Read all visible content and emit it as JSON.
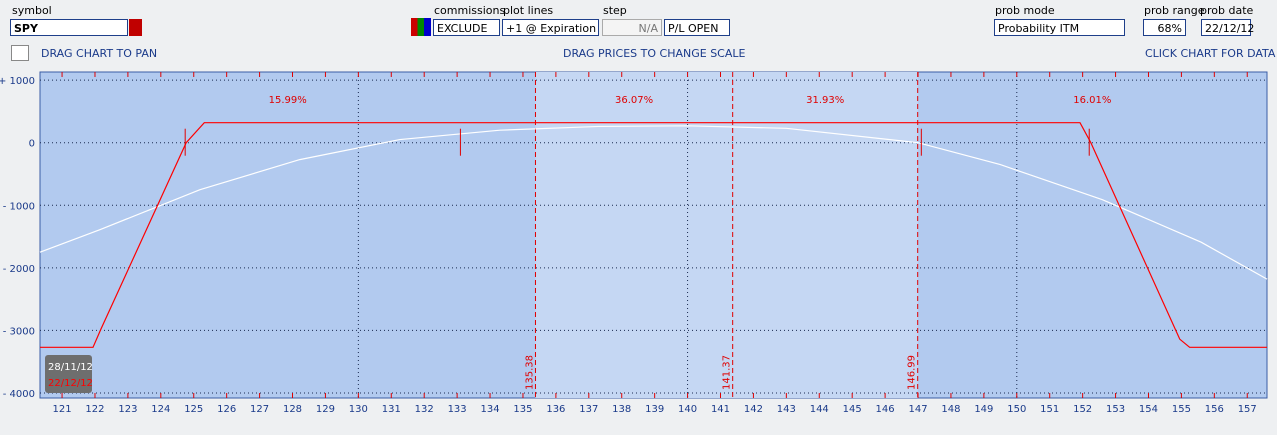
{
  "toolbar": {
    "symbol_label": "symbol",
    "symbol": "SPY",
    "commissions_label": "commissions",
    "commissions": "EXCLUDE",
    "plot_lines_label": "plot lines",
    "plot_lines": "+1 @ Expiration",
    "step_label": "step",
    "step": "N/A",
    "pl_mode": "P/L OPEN",
    "prob_mode_label": "prob mode",
    "prob_mode": "Probability ITM",
    "prob_range_label": "prob range",
    "prob_range": "68%",
    "prob_date_label": "prob date",
    "prob_date": "22/12/12"
  },
  "hints": [
    "DRAG CHART TO PAN",
    "DRAG PRICES TO CHANGE SCALE",
    "CLICK CHART FOR DATA"
  ],
  "chart_data": {
    "type": "line",
    "xlim": [
      120.33,
      157.6
    ],
    "ylim": [
      -4080,
      1130
    ],
    "xticks": [
      121,
      122,
      123,
      124,
      125,
      126,
      127,
      128,
      129,
      130,
      131,
      132,
      133,
      134,
      135,
      136,
      137,
      138,
      139,
      140,
      141,
      142,
      143,
      144,
      145,
      146,
      147,
      148,
      149,
      150,
      151,
      152,
      153,
      154,
      155,
      156,
      157
    ],
    "xgrid": [
      130,
      140,
      150
    ],
    "yticks": [
      {
        "value": 1000,
        "label": "+ 1000"
      },
      0,
      {
        "value": -1000,
        "label": "- 1000"
      },
      {
        "value": -2000,
        "label": "- 2000"
      },
      {
        "value": -3000,
        "label": "- 3000"
      },
      {
        "value": -4000,
        "label": "- 4000"
      }
    ],
    "grid": true,
    "legend": "bottom-left",
    "series": [
      {
        "name": "28/11/12",
        "color": "#ffffff",
        "x": [
          120.33,
          122.15,
          125.19,
          128.22,
          131.26,
          134.3,
          137.3,
          140,
          143,
          147,
          149.5,
          152.6,
          155.6,
          157.6
        ],
        "values": [
          -1750,
          -1390,
          -750,
          -270,
          50,
          200,
          260,
          270,
          230,
          0,
          -350,
          -910,
          -1590,
          -2180
        ]
      },
      {
        "name": "22/12/12",
        "color": "#ff0000",
        "x": [
          120.33,
          121.94,
          122.18,
          124.77,
          125.32,
          151.92,
          152.25,
          154.95,
          155.25,
          157.6
        ],
        "values": [
          -3270,
          -3270,
          -2980,
          0,
          320,
          320,
          0,
          -3140,
          -3270,
          -3270
        ]
      }
    ],
    "breakevens": [
      124.74,
      133.1,
      147.1,
      152.2
    ],
    "price_lines": [
      135.38,
      141.37,
      146.99
    ],
    "regions": {
      "values": [
        15.99,
        36.07,
        31.93,
        16.01
      ],
      "value_labels": [
        "15.99%",
        "36.07%",
        "31.93%",
        "16.01%"
      ]
    }
  }
}
